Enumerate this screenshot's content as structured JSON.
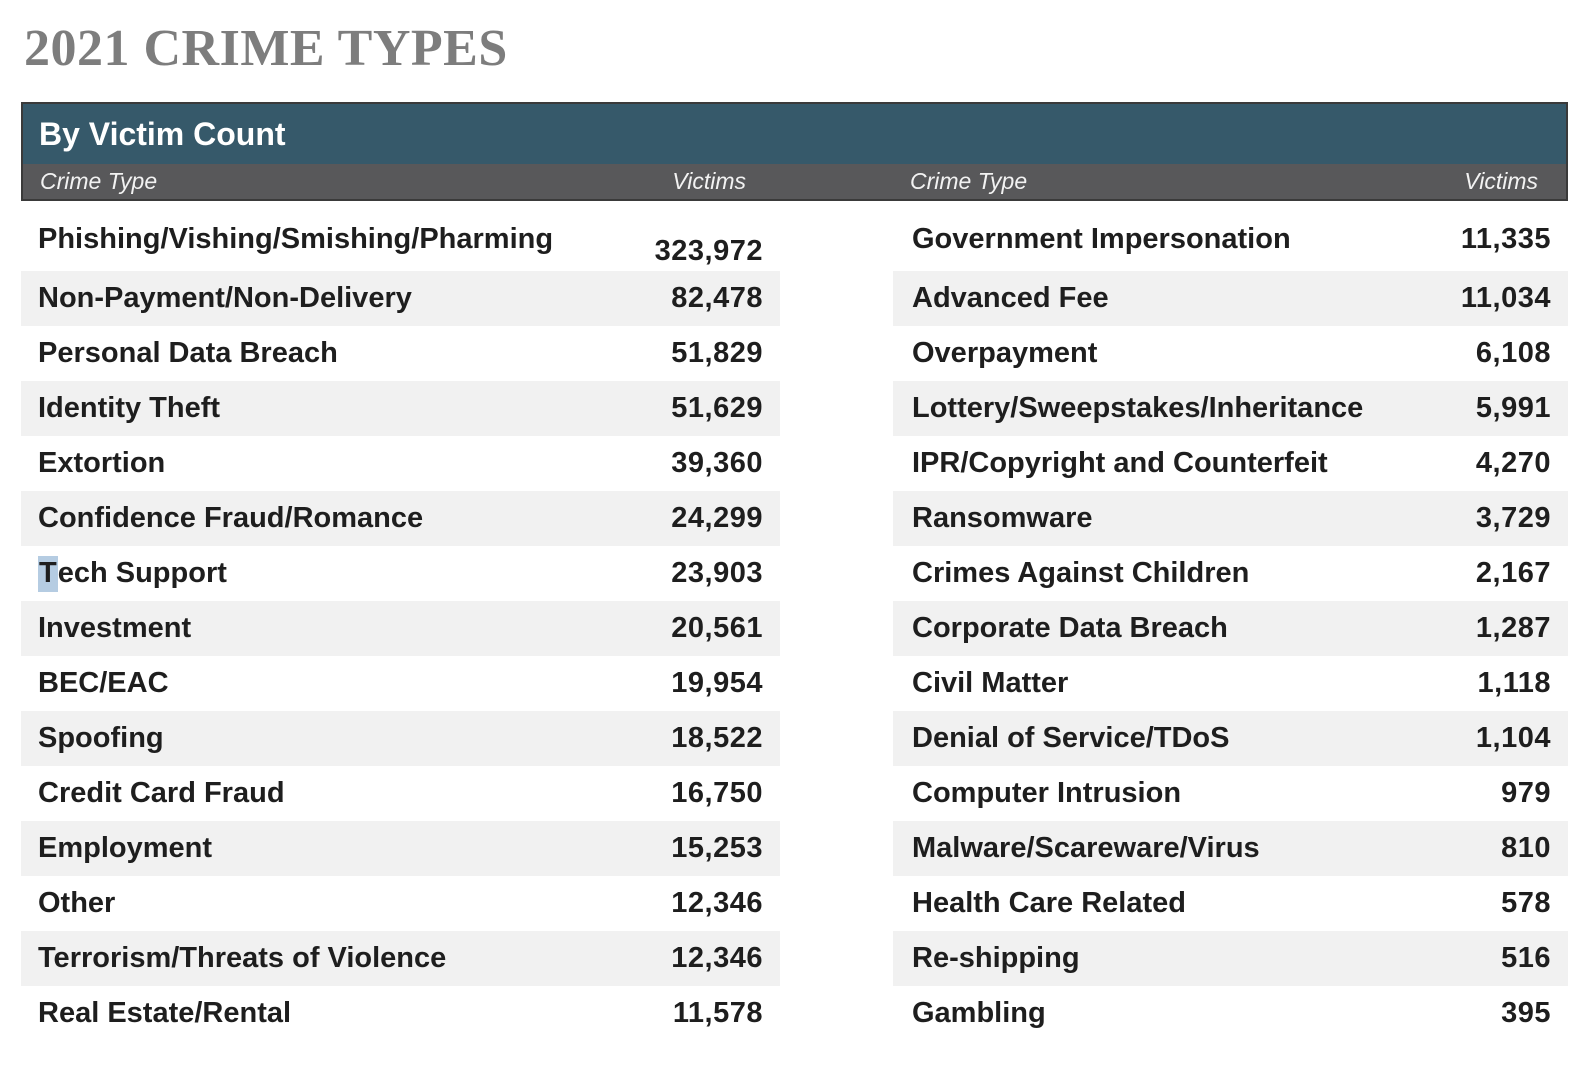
{
  "chart_data": {
    "type": "table",
    "title": "2021 CRIME TYPES",
    "section_header": "By Victim Count",
    "column_headers": [
      "Crime Type",
      "Victims"
    ],
    "layout": {
      "columns_side_by_side": 2,
      "zebra_striping": true,
      "first_row_value_offset": "left table first value sits on a lower baseline"
    },
    "left_table": {
      "rows": [
        {
          "type": "Phishing/Vishing/Smishing/Pharming",
          "victims": "323,972"
        },
        {
          "type": "Non-Payment/Non-Delivery",
          "victims": "82,478"
        },
        {
          "type": "Personal Data Breach",
          "victims": "51,829"
        },
        {
          "type": "Identity Theft",
          "victims": "51,629"
        },
        {
          "type": "Extortion",
          "victims": "39,360"
        },
        {
          "type": "Confidence Fraud/Romance",
          "victims": "24,299"
        },
        {
          "type": "Tech Support",
          "victims": "23,903",
          "highlight": {
            "prefix": "T",
            "remainder": "ech Support"
          }
        },
        {
          "type": "Investment",
          "victims": "20,561"
        },
        {
          "type": "BEC/EAC",
          "victims": "19,954"
        },
        {
          "type": "Spoofing",
          "victims": "18,522"
        },
        {
          "type": "Credit Card Fraud",
          "victims": "16,750"
        },
        {
          "type": "Employment",
          "victims": "15,253"
        },
        {
          "type": "Other",
          "victims": "12,346"
        },
        {
          "type": "Terrorism/Threats of Violence",
          "victims": "12,346"
        },
        {
          "type": "Real Estate/Rental",
          "victims": "11,578"
        }
      ]
    },
    "right_table": {
      "rows": [
        {
          "type": "Government Impersonation",
          "victims": "11,335"
        },
        {
          "type": "Advanced Fee",
          "victims": "11,034"
        },
        {
          "type": "Overpayment",
          "victims": "6,108"
        },
        {
          "type": "Lottery/Sweepstakes/Inheritance",
          "victims": "5,991"
        },
        {
          "type": "IPR/Copyright and Counterfeit",
          "victims": "4,270"
        },
        {
          "type": "Ransomware",
          "victims": "3,729"
        },
        {
          "type": "Crimes Against Children",
          "victims": "2,167"
        },
        {
          "type": "Corporate Data Breach",
          "victims": "1,287"
        },
        {
          "type": "Civil Matter",
          "victims": "1,118"
        },
        {
          "type": "Denial of Service/TDoS",
          "victims": "1,104"
        },
        {
          "type": "Computer Intrusion",
          "victims": "979"
        },
        {
          "type": "Malware/Scareware/Virus",
          "victims": "810"
        },
        {
          "type": "Health Care Related",
          "victims": "578"
        },
        {
          "type": "Re-shipping",
          "victims": "516"
        },
        {
          "type": "Gambling",
          "victims": "395"
        }
      ]
    }
  },
  "colors": {
    "section_header_bg": "#36596A",
    "column_header_bg": "#58585A",
    "header_border": "#3A3A3A",
    "stripe": "#F1F1F1",
    "title_text": "#7D7D7D",
    "row_text": "#1E1E1E",
    "header_text": "#FFFFFF",
    "selection_highlight": "#B5CCE2"
  }
}
